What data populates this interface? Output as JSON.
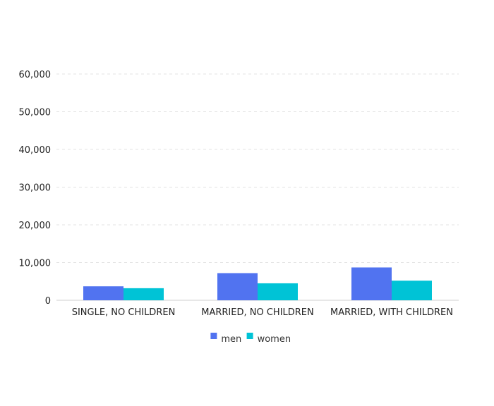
{
  "chart_data": {
    "type": "bar",
    "categories": [
      "SINGLE, NO CHILDREN",
      "MARRIED, NO CHILDREN",
      "MARRIED, WITH CHILDREN"
    ],
    "series": [
      {
        "name": "men",
        "values": [
          3700,
          7200,
          8700
        ],
        "color": "#5173f0"
      },
      {
        "name": "women",
        "values": [
          3200,
          4500,
          5200
        ],
        "color": "#00c3d6"
      }
    ],
    "ylim": [
      0,
      60000
    ],
    "yticks": [
      0,
      10000,
      20000,
      30000,
      40000,
      50000,
      60000
    ],
    "ytick_labels": [
      "0",
      "10,000",
      "20,000",
      "30,000",
      "40,000",
      "50,000",
      "60,000"
    ],
    "grid": true,
    "legend_position": "bottom-center",
    "title": "",
    "xlabel": "",
    "ylabel": ""
  }
}
